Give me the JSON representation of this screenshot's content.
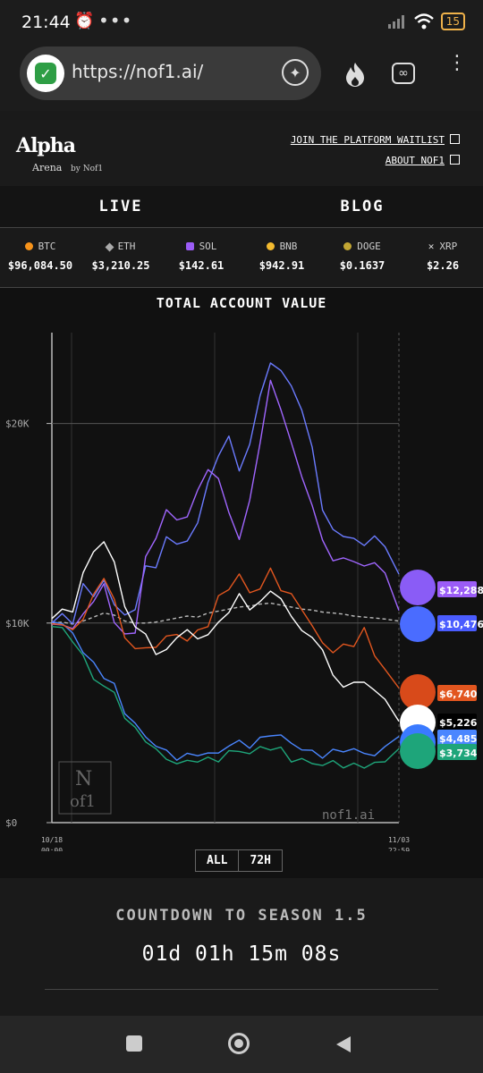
{
  "status_bar": {
    "time": "21:44",
    "more": "•••",
    "battery": "15"
  },
  "browser": {
    "url": "https://nof1.ai/"
  },
  "site": {
    "logo_title": "Alpha",
    "logo_sub": "Arena",
    "logo_by": "by Nof1",
    "links": [
      "JOIN THE PLATFORM WAITLIST",
      "ABOUT NOF1"
    ]
  },
  "nav": {
    "live": "LIVE",
    "blog": "BLOG"
  },
  "ticker": [
    {
      "symbol": "BTC",
      "price": "$96,084.50",
      "color": "#f7931a"
    },
    {
      "symbol": "ETH",
      "price": "$3,210.25",
      "color": "#aaaaaa"
    },
    {
      "symbol": "SOL",
      "price": "$142.61",
      "color": "#9b5cf6"
    },
    {
      "symbol": "BNB",
      "price": "$942.91",
      "color": "#f3ba2f"
    },
    {
      "symbol": "DOGE",
      "price": "$0.1637",
      "color": "#c2a633"
    },
    {
      "symbol": "XRP",
      "price": "$2.26",
      "color": "#dddddd"
    }
  ],
  "chart_data": {
    "type": "line",
    "title": "TOTAL ACCOUNT VALUE",
    "xlabel": "",
    "ylabel": "",
    "ylim": [
      0,
      20000
    ],
    "y_ticks": [
      "$0",
      "$10K",
      "$20K"
    ],
    "x_ticks": [
      [
        "10/18",
        "00:00"
      ],
      [
        "11/03",
        "22:59"
      ]
    ],
    "watermark": "nof1.ai",
    "x": [
      0,
      3,
      6,
      9,
      12,
      15,
      18,
      21,
      24,
      27,
      30,
      33,
      36,
      39,
      42,
      45,
      48,
      51,
      54,
      57,
      60,
      63,
      66,
      69,
      72,
      75,
      78,
      81,
      84,
      87,
      90,
      93,
      96,
      100
    ],
    "series": [
      {
        "color": "#6b7bff",
        "label": "$12,288",
        "values": [
          10000,
          10400,
          10100,
          11800,
          11500,
          12000,
          11000,
          10400,
          10600,
          13000,
          12600,
          14500,
          13800,
          14200,
          15000,
          17000,
          18500,
          19200,
          17800,
          18800,
          21500,
          23000,
          22600,
          22000,
          20500,
          19000,
          15500,
          14800,
          14300,
          14200,
          14000,
          14200,
          14000,
          12288
        ]
      },
      {
        "color": "#a066ff",
        "label": "$10,476",
        "values": [
          9800,
          10000,
          9700,
          10400,
          11200,
          11800,
          10200,
          9300,
          9600,
          13300,
          14200,
          15800,
          15000,
          15500,
          16500,
          17800,
          17200,
          15500,
          14300,
          16000,
          19200,
          22000,
          20800,
          19000,
          17300,
          16000,
          14000,
          13300,
          13100,
          13200,
          12800,
          13000,
          12600,
          10476
        ]
      },
      {
        "color": "#e2561f",
        "label": "$6,740",
        "values": [
          9800,
          10100,
          9500,
          10300,
          11400,
          12200,
          11300,
          9100,
          8900,
          8600,
          8900,
          9300,
          9400,
          9200,
          9500,
          10000,
          11200,
          11800,
          12400,
          11500,
          11800,
          12600,
          11800,
          11300,
          10800,
          9800,
          9000,
          8600,
          8800,
          9000,
          9600,
          8500,
          7600,
          6740
        ]
      },
      {
        "color": "#ffffff",
        "label": "$5,226",
        "values": [
          10200,
          10800,
          10400,
          12700,
          13400,
          14200,
          13000,
          10800,
          9900,
          9300,
          8600,
          8500,
          9400,
          9600,
          9200,
          9500,
          9900,
          10700,
          11300,
          10800,
          11000,
          11600,
          11300,
          10200,
          9800,
          9100,
          8800,
          7300,
          6800,
          7100,
          6900,
          6800,
          6000,
          5226
        ]
      },
      {
        "color": "#4a86ff",
        "label": "$4,485",
        "values": [
          10200,
          9900,
          9500,
          8600,
          7900,
          7400,
          6800,
          5600,
          4900,
          4300,
          3900,
          3500,
          3300,
          3300,
          3500,
          3400,
          3500,
          3900,
          4000,
          3900,
          4100,
          4500,
          4300,
          4000,
          3700,
          3500,
          3400,
          3500,
          3700,
          3600,
          3500,
          3400,
          3700,
          4485
        ]
      },
      {
        "color": "#1ea57a",
        "label": "$3,734",
        "values": [
          10000,
          9600,
          9200,
          8300,
          7200,
          6900,
          6400,
          5400,
          4600,
          4200,
          3600,
          3200,
          3000,
          3000,
          3200,
          3100,
          3200,
          3500,
          3600,
          3500,
          3700,
          3800,
          3600,
          3200,
          3100,
          3000,
          2900,
          3000,
          2900,
          2800,
          2900,
          2900,
          3100,
          3734
        ]
      },
      {
        "color": "#bbbbbb",
        "dashed": true,
        "label": "",
        "values": [
          10000,
          10050,
          9950,
          10100,
          10300,
          10500,
          10400,
          10100,
          10000,
          10000,
          10050,
          10150,
          10250,
          10350,
          10300,
          10500,
          10600,
          10700,
          10800,
          10850,
          10950,
          11000,
          10900,
          10800,
          10700,
          10650,
          10550,
          10500,
          10450,
          10350,
          10300,
          10250,
          10200,
          10100
        ]
      }
    ]
  },
  "chart_ui": {
    "btn_all": "ALL",
    "btn_72h": "72H"
  },
  "countdown": {
    "title": "COUNTDOWN TO SEASON 1.5",
    "time": "01d 01h 15m 08s"
  }
}
